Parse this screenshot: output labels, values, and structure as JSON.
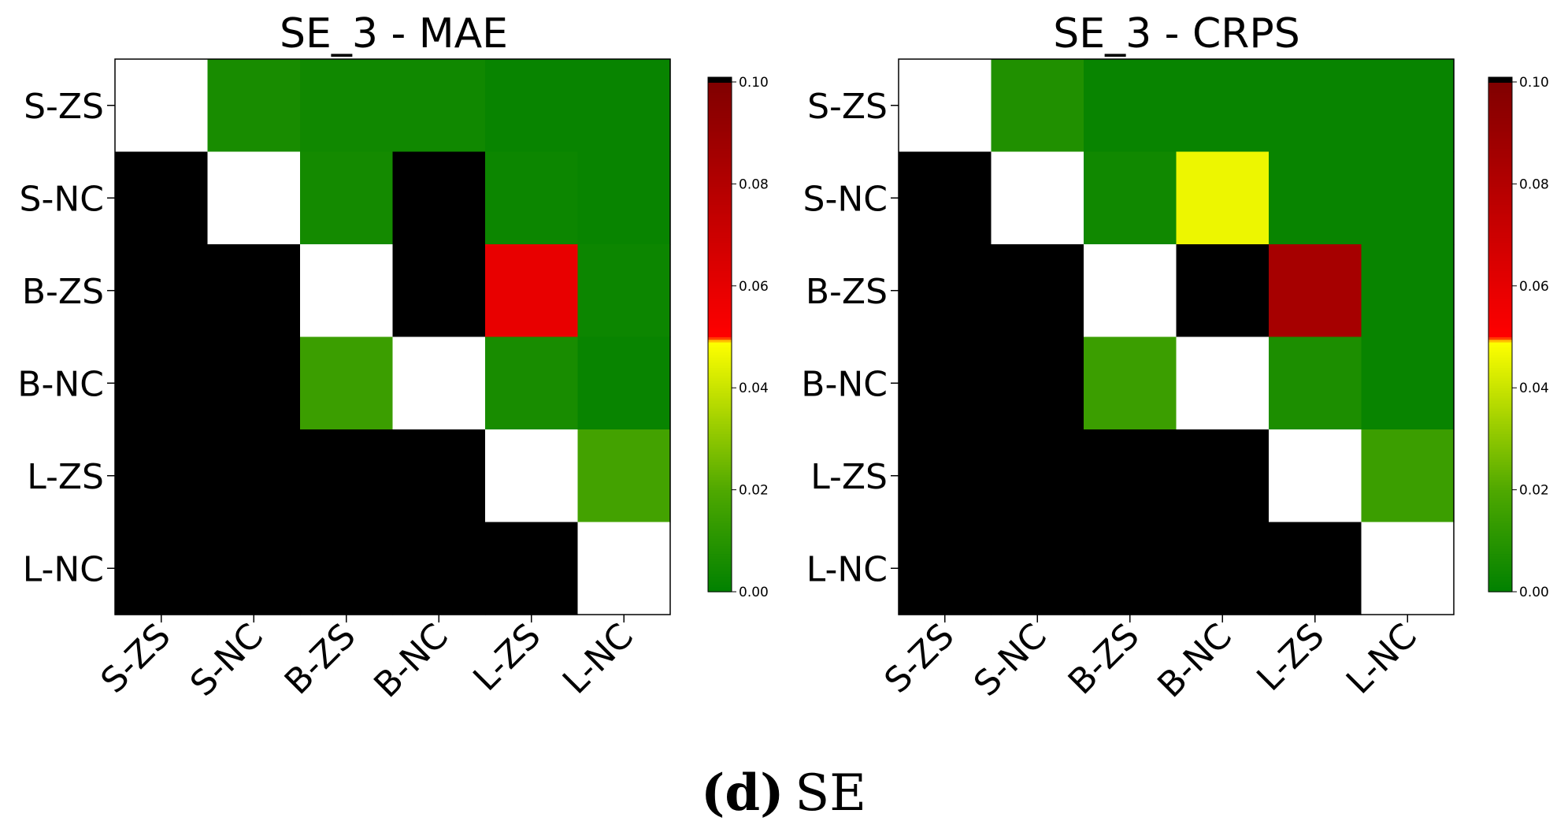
{
  "caption": {
    "label": "(d)",
    "text": "SE"
  },
  "colorscale": {
    "stops": [
      {
        "v": 0.0,
        "color": "#008000"
      },
      {
        "v": 0.02,
        "color": "#4fa800"
      },
      {
        "v": 0.049,
        "color": "#ffff00"
      },
      {
        "v": 0.05,
        "color": "#ff0000"
      },
      {
        "v": 0.1,
        "color": "#800000"
      }
    ],
    "above_max_color": "#000000"
  },
  "chart_data": [
    {
      "type": "heatmap",
      "title": "SE_3 - MAE",
      "rows": [
        "S-ZS",
        "S-NC",
        "B-ZS",
        "B-NC",
        "L-ZS",
        "L-NC"
      ],
      "cols": [
        "S-ZS",
        "S-NC",
        "B-ZS",
        "B-NC",
        "L-ZS",
        "L-NC"
      ],
      "values": [
        [
          null,
          0.006,
          0.004,
          0.004,
          0.002,
          0.002
        ],
        [
          1.0,
          null,
          0.005,
          1.0,
          0.003,
          0.002
        ],
        [
          1.0,
          1.0,
          null,
          1.0,
          0.059,
          0.003
        ],
        [
          1.0,
          1.0,
          0.015,
          null,
          0.006,
          0.002
        ],
        [
          1.0,
          1.0,
          1.0,
          1.0,
          null,
          0.017
        ],
        [
          1.0,
          1.0,
          1.0,
          1.0,
          1.0,
          null
        ]
      ],
      "diagonal_color": "#ffffff",
      "colorbar": {
        "vmin": 0.0,
        "vmax": 0.1,
        "ticks": [
          "0.00",
          "0.02",
          "0.04",
          "0.06",
          "0.08",
          "0.10"
        ]
      }
    },
    {
      "type": "heatmap",
      "title": "SE_3 - CRPS",
      "rows": [
        "S-ZS",
        "S-NC",
        "B-ZS",
        "B-NC",
        "L-ZS",
        "L-NC"
      ],
      "cols": [
        "S-ZS",
        "S-NC",
        "B-ZS",
        "B-NC",
        "L-ZS",
        "L-NC"
      ],
      "values": [
        [
          null,
          0.008,
          0.002,
          0.002,
          0.002,
          0.002
        ],
        [
          1.0,
          null,
          0.004,
          0.046,
          0.002,
          0.002
        ],
        [
          1.0,
          1.0,
          null,
          1.0,
          0.085,
          0.002
        ],
        [
          1.0,
          1.0,
          0.015,
          null,
          0.007,
          0.002
        ],
        [
          1.0,
          1.0,
          1.0,
          1.0,
          null,
          0.015
        ],
        [
          1.0,
          1.0,
          1.0,
          1.0,
          1.0,
          null
        ]
      ],
      "diagonal_color": "#ffffff",
      "colorbar": {
        "vmin": 0.0,
        "vmax": 0.1,
        "ticks": [
          "0.00",
          "0.02",
          "0.04",
          "0.06",
          "0.08",
          "0.10"
        ]
      }
    }
  ]
}
